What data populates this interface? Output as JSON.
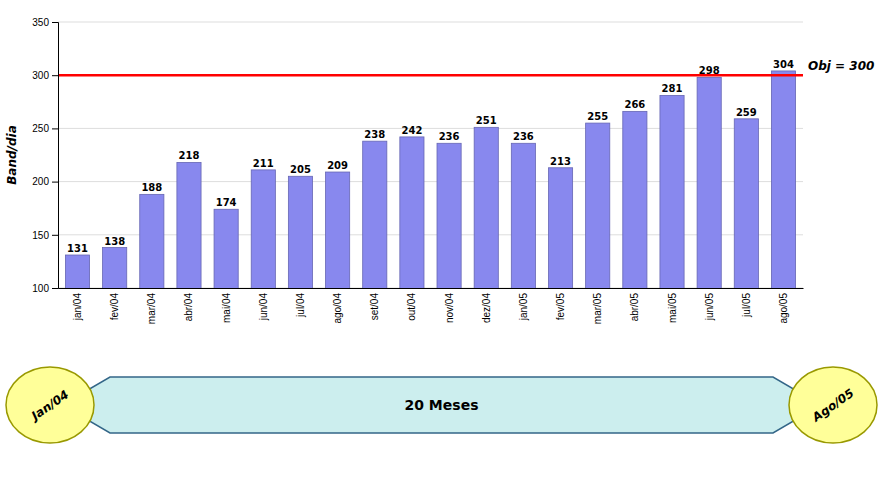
{
  "chart_data": {
    "type": "bar",
    "categories": [
      "jan/04",
      "fev/04",
      "mar/04",
      "abr/04",
      "mai/04",
      "jun/04",
      "jul/04",
      "ago/04",
      "set/04",
      "out/04",
      "nov/04",
      "dez/04",
      "jan/05",
      "fev/05",
      "mar/05",
      "abr/05",
      "mai/05",
      "jun/05",
      "jul/05",
      "ago/05"
    ],
    "values": [
      131,
      138,
      188,
      218,
      174,
      211,
      205,
      209,
      238,
      242,
      236,
      251,
      236,
      213,
      255,
      266,
      281,
      298,
      259,
      304
    ],
    "color": "#8888EE",
    "ylabel": "Band/dia",
    "ylim": [
      100,
      350
    ],
    "yticks": [
      100,
      150,
      200,
      250,
      300,
      350
    ],
    "grid": true,
    "data_labels": true,
    "annotations": [
      {
        "text": "Obj = 300",
        "y": 300,
        "color": "#FF0000"
      },
      {
        "text": "20 Meses"
      },
      {
        "text": "Jan/04"
      },
      {
        "text": "Ago/05"
      }
    ]
  }
}
